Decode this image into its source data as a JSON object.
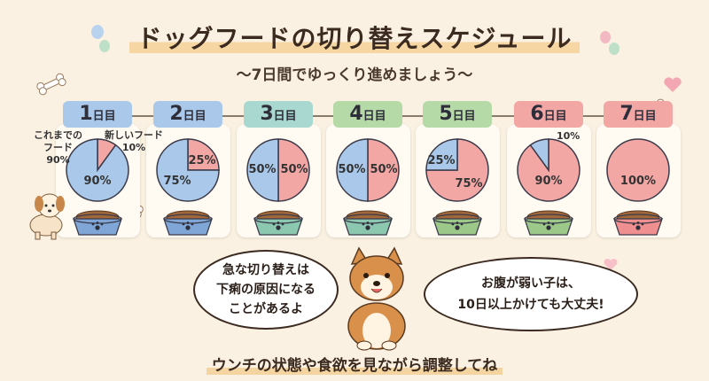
{
  "header": {
    "title": "ドッグフードの切り替えスケジュール",
    "subtitle": "〜7日間でゆっくり進めましょう〜"
  },
  "colors": {
    "old_food": "#a9c8ea",
    "new_food": "#f2a7a5"
  },
  "day_unit": "日目",
  "days": [
    {
      "day": "1",
      "badge_color": "#a9c8ea",
      "old": 90,
      "new": 10,
      "labels": [
        "90%"
      ],
      "bowl_color": "#7fa6d6"
    },
    {
      "day": "2",
      "badge_color": "#a9c8ea",
      "old": 75,
      "new": 25,
      "labels": [
        "75%",
        "25%"
      ],
      "bowl_color": "#7fa6d6"
    },
    {
      "day": "3",
      "badge_color": "#a8d8cf",
      "old": 50,
      "new": 50,
      "labels": [
        "50%",
        "50%"
      ],
      "bowl_color": "#8cc7b0"
    },
    {
      "day": "4",
      "badge_color": "#b6d9a8",
      "old": 50,
      "new": 50,
      "labels": [
        "50%",
        "50%"
      ],
      "bowl_color": "#8cc7b0"
    },
    {
      "day": "5",
      "badge_color": "#b6d9a8",
      "old": 25,
      "new": 75,
      "labels": [
        "25%",
        "75%"
      ],
      "bowl_color": "#9cc98a"
    },
    {
      "day": "6",
      "badge_color": "#f2a7a5",
      "old": 10,
      "new": 90,
      "labels": [
        "90%"
      ],
      "bowl_color": "#9cc98a"
    },
    {
      "day": "7",
      "badge_color": "#f2a7a5",
      "old": 0,
      "new": 100,
      "labels": [
        "100%"
      ],
      "bowl_color": "#f08f8f"
    }
  ],
  "annotations": {
    "old_food": "これまでの\nフード\n90%",
    "new_food": "新しいフード\n10%",
    "day6_old": "10%"
  },
  "bubbles": {
    "left": "急な切り替えは\n下痢の原因になる\nことがあるよ",
    "right": "お腹が弱い子は、\n10日以上かけても大丈夫!"
  },
  "footer": "ウンチの状態や食欲を見ながら調整してね"
}
